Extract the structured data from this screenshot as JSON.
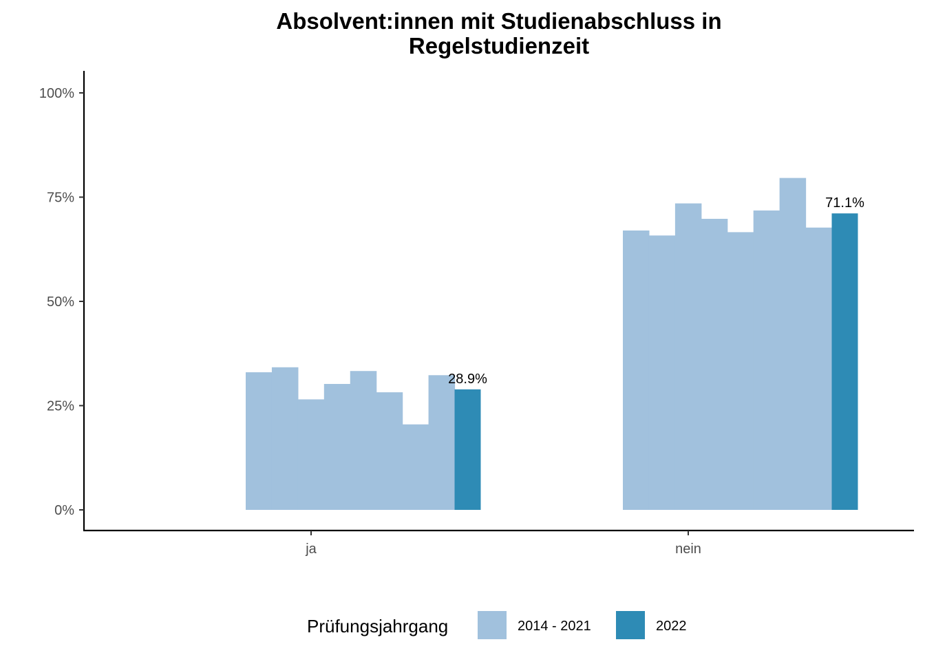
{
  "chart_data": {
    "type": "bar",
    "title_lines": [
      "Absolvent:innen mit Studienabschluss in",
      "Regelstudienzeit"
    ],
    "xlabel": "",
    "ylabel": "",
    "categories": [
      "ja",
      "nein"
    ],
    "ylim": [
      0,
      1.05
    ],
    "yticks": [
      0,
      0.25,
      0.5,
      0.75,
      1.0
    ],
    "ytick_labels": [
      "0%",
      "25%",
      "50%",
      "75%",
      "100%"
    ],
    "grid": false,
    "legend_position": "bottom",
    "legend": {
      "title": "Prüfungsjahrgang",
      "entries": [
        {
          "label": "2014 - 2021",
          "color": "#a1c1dd"
        },
        {
          "label": "2022",
          "color": "#2e8bb5"
        }
      ]
    },
    "bars": [
      {
        "category": "ja",
        "group": "2014 - 2021",
        "values": [
          0.33,
          0.342,
          0.265,
          0.302,
          0.333,
          0.282,
          0.205,
          0.323
        ]
      },
      {
        "category": "ja",
        "group": "2022",
        "values": [
          0.289
        ],
        "label": "28.9%"
      },
      {
        "category": "nein",
        "group": "2014 - 2021",
        "values": [
          0.67,
          0.658,
          0.735,
          0.698,
          0.666,
          0.718,
          0.796,
          0.677
        ]
      },
      {
        "category": "nein",
        "group": "2022",
        "values": [
          0.711
        ],
        "label": "71.1%"
      }
    ]
  }
}
